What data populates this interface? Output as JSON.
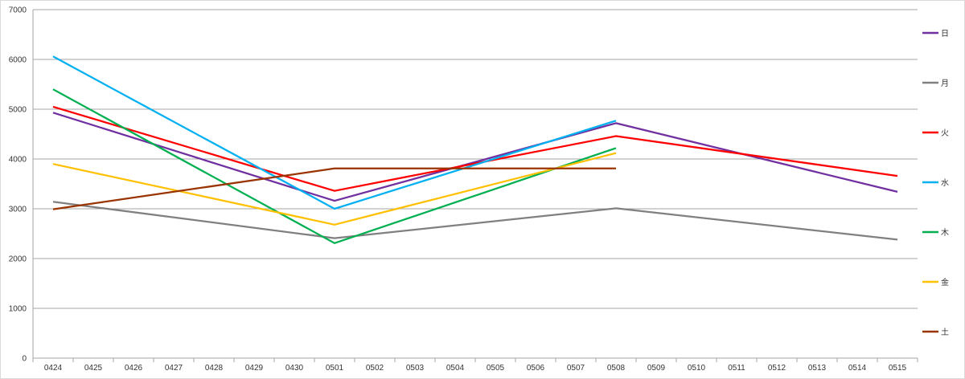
{
  "chart_data": {
    "type": "line",
    "categories": [
      "0424",
      "0425",
      "0426",
      "0427",
      "0428",
      "0429",
      "0430",
      "0501",
      "0502",
      "0503",
      "0504",
      "0505",
      "0506",
      "0507",
      "0508",
      "0509",
      "0510",
      "0511",
      "0512",
      "0513",
      "0514",
      "0515"
    ],
    "ylim": [
      0,
      7000
    ],
    "yticks": [
      0,
      1000,
      2000,
      3000,
      4000,
      5000,
      6000,
      7000
    ],
    "grid": "horizontal",
    "legend_position": "right",
    "series": [
      {
        "name": "日",
        "color": "#7030A0",
        "values": [
          4930,
          null,
          null,
          null,
          null,
          null,
          null,
          3160,
          null,
          null,
          null,
          null,
          null,
          null,
          4720,
          null,
          null,
          null,
          null,
          null,
          null,
          3340
        ]
      },
      {
        "name": "月",
        "color": "#808080",
        "values": [
          3140,
          null,
          null,
          null,
          null,
          null,
          null,
          2410,
          null,
          null,
          null,
          null,
          null,
          null,
          3010,
          null,
          null,
          null,
          null,
          null,
          null,
          2380
        ]
      },
      {
        "name": "火",
        "color": "#FF0000",
        "values": [
          5050,
          null,
          null,
          null,
          null,
          null,
          null,
          3360,
          null,
          null,
          null,
          null,
          null,
          null,
          4460,
          null,
          null,
          null,
          null,
          null,
          null,
          3660
        ]
      },
      {
        "name": "水",
        "color": "#00B0F0",
        "values": [
          6060,
          null,
          null,
          null,
          null,
          null,
          null,
          3000,
          null,
          null,
          null,
          null,
          null,
          null,
          4770,
          null,
          null,
          null,
          null,
          null,
          null,
          null
        ]
      },
      {
        "name": "木",
        "color": "#00B050",
        "values": [
          5400,
          null,
          null,
          null,
          null,
          null,
          null,
          2310,
          null,
          null,
          null,
          null,
          null,
          null,
          4220,
          null,
          null,
          null,
          null,
          null,
          null,
          null
        ]
      },
      {
        "name": "金",
        "color": "#FFC000",
        "values": [
          3900,
          null,
          null,
          null,
          null,
          null,
          null,
          2680,
          null,
          null,
          null,
          null,
          null,
          null,
          4120,
          null,
          null,
          null,
          null,
          null,
          null,
          null
        ]
      },
      {
        "name": "土",
        "color": "#993300",
        "values": [
          2990,
          null,
          null,
          null,
          null,
          null,
          null,
          3810,
          null,
          null,
          null,
          null,
          null,
          null,
          3810,
          null,
          null,
          null,
          null,
          null,
          null,
          null
        ]
      }
    ]
  }
}
